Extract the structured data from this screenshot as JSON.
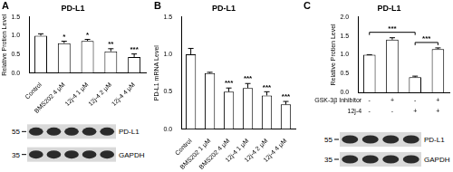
{
  "chart_data": [
    {
      "panel": "A",
      "type": "bar",
      "title": "PD-L1",
      "y_label": "Relative Protien Level",
      "categories": [
        "Control",
        "BMS202 4 μM",
        "12j-4 1 μM",
        "12j-4 2 μM",
        "12j-4 4 μM"
      ],
      "values": [
        1.0,
        0.8,
        0.86,
        0.58,
        0.43
      ],
      "errors": [
        0.05,
        0.05,
        0.04,
        0.07,
        0.08
      ],
      "significance": [
        null,
        "*",
        "*",
        "**",
        "***"
      ],
      "color": "#ffffff",
      "grid": false,
      "ylim": [
        0,
        1.5
      ],
      "yticks": [
        {
          "value": 0,
          "label": "0.0"
        },
        {
          "value": 0.5,
          "label": "0.5"
        },
        {
          "value": 1,
          "label": "1.0"
        },
        {
          "value": 1.5,
          "label": "1.5"
        }
      ],
      "blot": {
        "rows": [
          {
            "label": "PD-L1",
            "marker": 55
          },
          {
            "label": "GAPDH",
            "marker": 35
          }
        ]
      }
    },
    {
      "panel": "B",
      "type": "bar",
      "title": "PD-L1",
      "y_label": "PD-L1 mRNA Level",
      "categories": [
        "Control",
        "BMS202 1 μM",
        "BMS202 4 μM",
        "12j-4 1 μM",
        "12j-4 2 μM",
        "12j-4 4 μM"
      ],
      "values": [
        1.0,
        0.75,
        0.5,
        0.55,
        0.45,
        0.33
      ],
      "errors": [
        0.08,
        0.01,
        0.05,
        0.06,
        0.05,
        0.04
      ],
      "significance": [
        null,
        null,
        "***",
        "***",
        "***",
        "***"
      ],
      "color": "#ffffff",
      "grid": false,
      "ylim": [
        0,
        1.5
      ],
      "yticks": [
        {
          "value": 0,
          "label": "0.0"
        },
        {
          "value": 0.5,
          "label": "0.5"
        },
        {
          "value": 1,
          "label": "1.0"
        },
        {
          "value": 1.5,
          "label": "1.5"
        }
      ]
    },
    {
      "panel": "C",
      "type": "bar",
      "title": "PD-L1",
      "y_label": "Relative Protien Level",
      "categories": [
        null,
        null,
        null,
        null
      ],
      "values": [
        1.0,
        1.4,
        0.4,
        1.15
      ],
      "errors": [
        0.0,
        0.05,
        0.03,
        0.03
      ],
      "comparisons": [
        {
          "from": 0,
          "to": 2,
          "label": "***"
        },
        {
          "from": 2,
          "to": 3,
          "label": "***"
        }
      ],
      "treatments": [
        {
          "label": "GSK-3β Inhibitor",
          "values": [
            "-",
            "+",
            "-",
            "+"
          ]
        },
        {
          "label": "12j-4",
          "values": [
            "-",
            "-",
            "+",
            "+"
          ]
        }
      ],
      "color": "#ffffff",
      "grid": false,
      "tick_labels": "y",
      "ylim": [
        0,
        2
      ],
      "yticks": [
        {
          "value": 0,
          "label": "0.0"
        },
        {
          "value": 0.5,
          "label": "0.5"
        },
        {
          "value": 1,
          "label": "1.0"
        },
        {
          "value": 1.5,
          "label": "1.5"
        },
        {
          "value": 2,
          "label": "2.0"
        }
      ],
      "blot": {
        "rows": [
          {
            "label": "PD-L1",
            "marker": 55
          },
          {
            "label": "GAPDH",
            "marker": 35
          }
        ]
      }
    }
  ]
}
